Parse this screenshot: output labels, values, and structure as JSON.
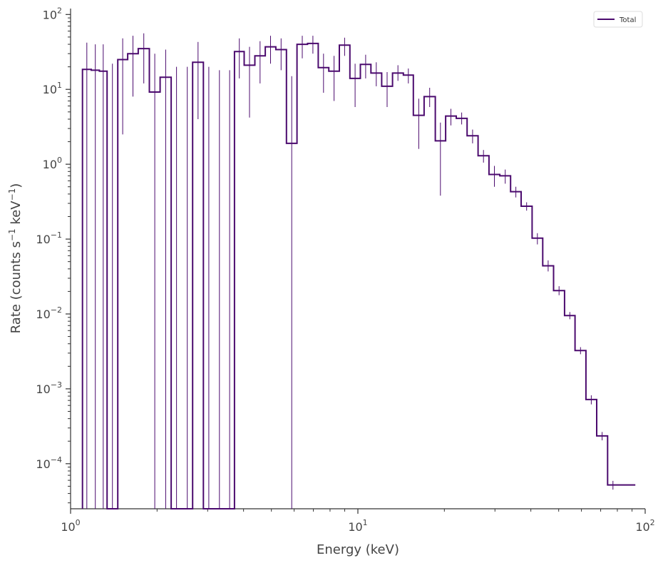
{
  "chart_data": {
    "type": "line",
    "title": "",
    "xlabel": "Energy (keV)",
    "ylabel_base": "Rate (counts s",
    "ylabel_mid": " keV",
    "ylabel_end": ")",
    "ylabel_sup": "−1",
    "xscale": "log",
    "yscale": "log",
    "xlim": [
      1,
      100
    ],
    "ylim": [
      2.5e-05,
      120
    ],
    "x_ticks": [
      {
        "base": "10",
        "exp": "0",
        "value": 1
      },
      {
        "base": "10",
        "exp": "1",
        "value": 10
      },
      {
        "base": "10",
        "exp": "2",
        "value": 100
      }
    ],
    "y_ticks": [
      {
        "base": "10",
        "exp": "2",
        "value": 100
      },
      {
        "base": "10",
        "exp": "1",
        "value": 10
      },
      {
        "base": "10",
        "exp": "0",
        "value": 1
      },
      {
        "base": "10",
        "exp": "−1",
        "value": 0.1
      },
      {
        "base": "10",
        "exp": "−2",
        "value": 0.01
      },
      {
        "base": "10",
        "exp": "−3",
        "value": 0.001
      },
      {
        "base": "10",
        "exp": "−4",
        "value": 0.0001
      }
    ],
    "grid": false,
    "legend_position": "top-right",
    "series": [
      {
        "name": "Total",
        "color": "#4b0a6e",
        "bins": [
          {
            "lo": 1.1,
            "hi": 1.18,
            "y": 18.5,
            "err_lo": null,
            "err_hi": 42
          },
          {
            "lo": 1.18,
            "hi": 1.26,
            "y": 18.0,
            "err_lo": null,
            "err_hi": 40
          },
          {
            "lo": 1.26,
            "hi": 1.34,
            "y": 17.5,
            "err_lo": null,
            "err_hi": 40
          },
          {
            "lo": 1.34,
            "hi": 1.46,
            "y": null,
            "err_lo": null,
            "err_hi": 22
          },
          {
            "lo": 1.46,
            "hi": 1.58,
            "y": 25,
            "err_lo": 2.5,
            "err_hi": 48
          },
          {
            "lo": 1.58,
            "hi": 1.72,
            "y": 30,
            "err_lo": 8,
            "err_hi": 52
          },
          {
            "lo": 1.72,
            "hi": 1.88,
            "y": 35,
            "err_lo": 12,
            "err_hi": 56
          },
          {
            "lo": 1.88,
            "hi": 2.05,
            "y": 9.2,
            "err_lo": null,
            "err_hi": 30
          },
          {
            "lo": 2.05,
            "hi": 2.24,
            "y": 14.5,
            "err_lo": null,
            "err_hi": 34
          },
          {
            "lo": 2.24,
            "hi": 2.44,
            "y": null,
            "err_lo": null,
            "err_hi": 20
          },
          {
            "lo": 2.44,
            "hi": 2.66,
            "y": null,
            "err_lo": null,
            "err_hi": 20
          },
          {
            "lo": 2.66,
            "hi": 2.9,
            "y": 23,
            "err_lo": 4,
            "err_hi": 43
          },
          {
            "lo": 2.9,
            "hi": 3.16,
            "y": null,
            "err_lo": null,
            "err_hi": 20
          },
          {
            "lo": 3.16,
            "hi": 3.44,
            "y": null,
            "err_lo": null,
            "err_hi": 18
          },
          {
            "lo": 3.44,
            "hi": 3.72,
            "y": null,
            "err_lo": null,
            "err_hi": 18
          },
          {
            "lo": 3.72,
            "hi": 4.02,
            "y": 32,
            "err_lo": 14,
            "err_hi": 48
          },
          {
            "lo": 4.02,
            "hi": 4.38,
            "y": 21,
            "err_lo": 4.2,
            "err_hi": 37
          },
          {
            "lo": 4.38,
            "hi": 4.76,
            "y": 28,
            "err_lo": 12,
            "err_hi": 44
          },
          {
            "lo": 4.76,
            "hi": 5.18,
            "y": 37,
            "err_lo": 22,
            "err_hi": 52
          },
          {
            "lo": 5.18,
            "hi": 5.64,
            "y": 34,
            "err_lo": 18,
            "err_hi": 48
          },
          {
            "lo": 5.64,
            "hi": 6.14,
            "y": 1.9,
            "err_lo": null,
            "err_hi": 15
          },
          {
            "lo": 6.14,
            "hi": 6.68,
            "y": 40,
            "err_lo": 26,
            "err_hi": 52
          },
          {
            "lo": 6.68,
            "hi": 7.28,
            "y": 41,
            "err_lo": 30,
            "err_hi": 52
          },
          {
            "lo": 7.28,
            "hi": 7.92,
            "y": 19.5,
            "err_lo": 9,
            "err_hi": 30
          },
          {
            "lo": 7.92,
            "hi": 8.62,
            "y": 17.5,
            "err_lo": 7,
            "err_hi": 28
          },
          {
            "lo": 8.62,
            "hi": 9.38,
            "y": 39,
            "err_lo": 28,
            "err_hi": 49
          },
          {
            "lo": 9.38,
            "hi": 10.2,
            "y": 14,
            "err_lo": 5.8,
            "err_hi": 22
          },
          {
            "lo": 10.2,
            "hi": 11.1,
            "y": 21.5,
            "err_lo": 14,
            "err_hi": 29
          },
          {
            "lo": 11.1,
            "hi": 12.1,
            "y": 16.5,
            "err_lo": 11,
            "err_hi": 23
          },
          {
            "lo": 12.1,
            "hi": 13.2,
            "y": 11,
            "err_lo": 5.8,
            "err_hi": 17
          },
          {
            "lo": 13.2,
            "hi": 14.4,
            "y": 16.5,
            "err_lo": 13,
            "err_hi": 21
          },
          {
            "lo": 14.4,
            "hi": 15.6,
            "y": 15.5,
            "err_lo": 12,
            "err_hi": 19
          },
          {
            "lo": 15.6,
            "hi": 17.0,
            "y": 4.5,
            "err_lo": 1.6,
            "err_hi": 7.5
          },
          {
            "lo": 17.0,
            "hi": 18.6,
            "y": 8.0,
            "err_lo": 5.8,
            "err_hi": 10.5
          },
          {
            "lo": 18.6,
            "hi": 20.2,
            "y": 2.05,
            "err_lo": 0.38,
            "err_hi": 3.6
          },
          {
            "lo": 20.2,
            "hi": 22.0,
            "y": 4.4,
            "err_lo": 3.3,
            "err_hi": 5.5
          },
          {
            "lo": 22.0,
            "hi": 24.0,
            "y": 4.1,
            "err_lo": 3.4,
            "err_hi": 4.9
          },
          {
            "lo": 24.0,
            "hi": 26.2,
            "y": 2.4,
            "err_lo": 1.9,
            "err_hi": 2.9
          },
          {
            "lo": 26.2,
            "hi": 28.6,
            "y": 1.3,
            "err_lo": 1.05,
            "err_hi": 1.55
          },
          {
            "lo": 28.6,
            "hi": 31.2,
            "y": 0.73,
            "err_lo": 0.5,
            "err_hi": 0.95
          },
          {
            "lo": 31.2,
            "hi": 34.0,
            "y": 0.7,
            "err_lo": 0.55,
            "err_hi": 0.85
          },
          {
            "lo": 34.0,
            "hi": 37.0,
            "y": 0.43,
            "err_lo": 0.36,
            "err_hi": 0.5
          },
          {
            "lo": 37.0,
            "hi": 40.4,
            "y": 0.275,
            "err_lo": 0.24,
            "err_hi": 0.31
          },
          {
            "lo": 40.4,
            "hi": 44.0,
            "y": 0.103,
            "err_lo": 0.085,
            "err_hi": 0.12
          },
          {
            "lo": 44.0,
            "hi": 48.0,
            "y": 0.044,
            "err_lo": 0.037,
            "err_hi": 0.052
          },
          {
            "lo": 48.0,
            "hi": 52.4,
            "y": 0.0205,
            "err_lo": 0.0178,
            "err_hi": 0.0235
          },
          {
            "lo": 52.4,
            "hi": 57.0,
            "y": 0.0095,
            "err_lo": 0.0085,
            "err_hi": 0.0106
          },
          {
            "lo": 57.0,
            "hi": 62.2,
            "y": 0.00325,
            "err_lo": 0.0029,
            "err_hi": 0.0036
          },
          {
            "lo": 62.2,
            "hi": 67.8,
            "y": 0.00072,
            "err_lo": 0.00062,
            "err_hi": 0.00082
          },
          {
            "lo": 67.8,
            "hi": 74.0,
            "y": 0.000235,
            "err_lo": 0.000205,
            "err_hi": 0.000265
          },
          {
            "lo": 74.0,
            "hi": 80.6,
            "y": 5.2e-05,
            "err_lo": 4.5e-05,
            "err_hi": 5.9e-05
          },
          {
            "lo": 80.6,
            "hi": 88.0,
            "y": 5.2e-05,
            "err_lo": null,
            "err_hi": null
          }
        ]
      }
    ]
  }
}
